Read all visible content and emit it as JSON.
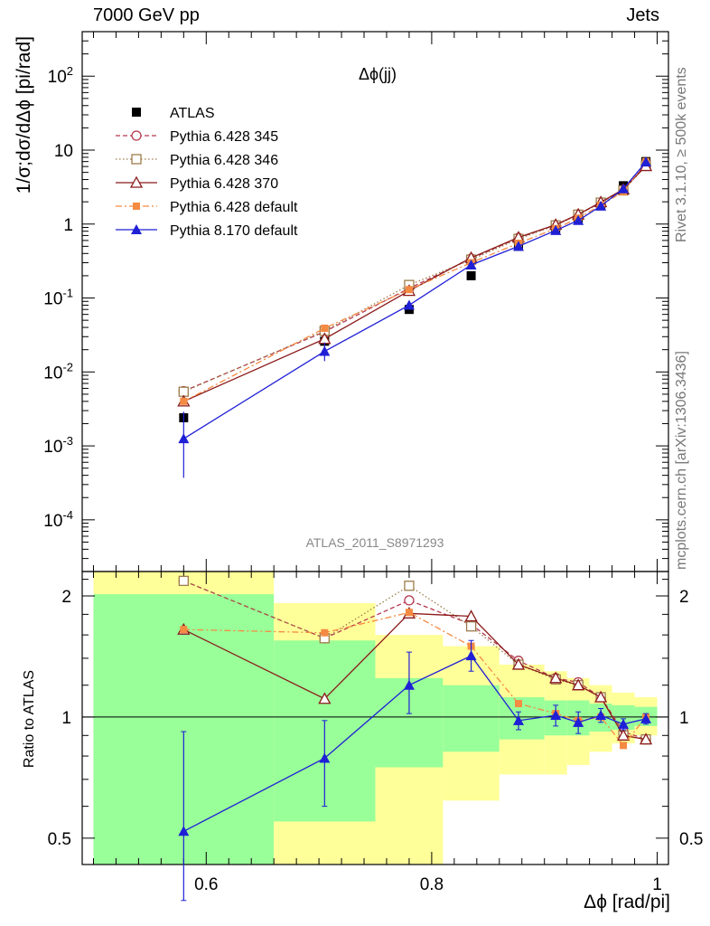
{
  "header": {
    "left": "7000 GeV pp",
    "right": "Jets",
    "side_top": "Rivet 3.1.10, ≥ 500k events",
    "side_bottom": "mcplots.cern.ch [arXiv:1306.3436]"
  },
  "chart_data": [
    {
      "type": "scatter",
      "panel": "main",
      "title": "Δϕ(jj)",
      "reference": "ATLAS_2011_S8971293",
      "ylabel": "1/σ;dσ/dΔϕ [pi/rad]",
      "xlabel": "Δϕ [rad/pi]",
      "yscale": "log",
      "xlim": [
        0.49,
        1.01
      ],
      "ylim": [
        2e-05,
        400
      ],
      "yticks": [
        0.0001,
        0.001,
        0.01,
        0.1,
        1,
        10,
        100
      ],
      "ytick_labels": [
        "10^-4",
        "10^-3",
        "10^-2",
        "10^-1",
        "1",
        "10",
        "10^2"
      ],
      "legend_position": "top-left",
      "x": [
        0.58,
        0.705,
        0.78,
        0.835,
        0.877,
        0.91,
        0.93,
        0.95,
        0.97,
        0.99
      ],
      "series": [
        {
          "name": "ATLAS",
          "color": "#000000",
          "marker": "square",
          "line": "none",
          "values": [
            0.0024,
            0.026,
            0.07,
            0.2,
            0.5,
            0.85,
            1.2,
            1.8,
            3.3,
            7.0
          ]
        },
        {
          "name": "Pythia 6.428 345",
          "color": "#b5394f",
          "marker": "open-circle",
          "line": "dashed",
          "values": [
            0.0055,
            0.035,
            0.135,
            0.34,
            0.65,
            0.97,
            1.35,
            1.95,
            2.9,
            6.3
          ]
        },
        {
          "name": "Pythia 6.428 346",
          "color": "#9d7c4a",
          "marker": "open-square",
          "line": "dotted",
          "values": [
            0.0054,
            0.036,
            0.15,
            0.33,
            0.63,
            0.96,
            1.34,
            1.95,
            2.85,
            6.2
          ]
        },
        {
          "name": "Pythia 6.428 370",
          "color": "#8b1a1a",
          "marker": "open-triangle",
          "line": "solid",
          "values": [
            0.004,
            0.028,
            0.125,
            0.35,
            0.66,
            0.98,
            1.35,
            1.98,
            2.95,
            6.1
          ]
        },
        {
          "name": "Pythia 6.428 default",
          "color": "#f58a42",
          "marker": "small-square",
          "line": "dashdot",
          "values": [
            0.004,
            0.039,
            0.13,
            0.3,
            0.55,
            0.87,
            1.2,
            1.8,
            2.75,
            7.0
          ]
        },
        {
          "name": "Pythia 8.170 default",
          "color": "#1f1fd6",
          "marker": "triangle",
          "line": "solid",
          "values": [
            0.00125,
            0.019,
            0.08,
            0.28,
            0.5,
            0.82,
            1.12,
            1.75,
            3.0,
            6.9
          ],
          "err_lo": [
            0.00037,
            0.014,
            0.07,
            0.26,
            0.47,
            0.78,
            1.06,
            1.67,
            2.85,
            6.6
          ],
          "err_hi": [
            0.0029,
            0.025,
            0.09,
            0.3,
            0.53,
            0.86,
            1.18,
            1.83,
            3.15,
            7.2
          ]
        }
      ]
    },
    {
      "type": "scatter",
      "panel": "ratio",
      "ylabel": "Ratio to ATLAS",
      "xlabel": "Δϕ [rad/pi]",
      "xlim": [
        0.49,
        1.01
      ],
      "ylim": [
        0.43,
        2.3
      ],
      "xticks": [
        0.6,
        0.8,
        1
      ],
      "xtick_labels": [
        "0.6",
        "0.8",
        "1"
      ],
      "yticks": [
        0.5,
        1,
        2
      ],
      "ytick_labels": [
        "0.5",
        "1",
        "2"
      ],
      "bands": [
        {
          "x0": 0.5,
          "x1": 0.66,
          "g_lo": 0.43,
          "g_hi": 2.02,
          "y_lo": 0.43,
          "y_hi": 2.3
        },
        {
          "x0": 0.66,
          "x1": 0.75,
          "g_lo": 0.55,
          "g_hi": 1.55,
          "y_lo": 0.43,
          "y_hi": 1.92
        },
        {
          "x0": 0.75,
          "x1": 0.81,
          "g_lo": 0.75,
          "g_hi": 1.25,
          "y_lo": 0.43,
          "y_hi": 1.6
        },
        {
          "x0": 0.81,
          "x1": 0.86,
          "g_lo": 0.82,
          "g_hi": 1.2,
          "y_lo": 0.62,
          "y_hi": 1.5
        },
        {
          "x0": 0.86,
          "x1": 0.9,
          "g_lo": 0.88,
          "g_hi": 1.12,
          "y_lo": 0.72,
          "y_hi": 1.35
        },
        {
          "x0": 0.9,
          "x1": 0.92,
          "g_lo": 0.9,
          "g_hi": 1.1,
          "y_lo": 0.72,
          "y_hi": 1.3
        },
        {
          "x0": 0.92,
          "x1": 0.94,
          "g_lo": 0.9,
          "g_hi": 1.1,
          "y_lo": 0.76,
          "y_hi": 1.25
        },
        {
          "x0": 0.94,
          "x1": 0.96,
          "g_lo": 0.92,
          "g_hi": 1.08,
          "y_lo": 0.82,
          "y_hi": 1.2
        },
        {
          "x0": 0.96,
          "x1": 0.98,
          "g_lo": 0.93,
          "g_hi": 1.07,
          "y_lo": 0.86,
          "y_hi": 1.15
        },
        {
          "x0": 0.98,
          "x1": 1.0,
          "g_lo": 0.95,
          "g_hi": 1.06,
          "y_lo": 0.9,
          "y_hi": 1.12
        }
      ],
      "x": [
        0.58,
        0.705,
        0.78,
        0.835,
        0.877,
        0.91,
        0.93,
        0.95,
        0.97,
        0.99
      ],
      "series": [
        {
          "name": "Pythia 6.428 345",
          "color": "#b5394f",
          "values": [
            2.18,
            1.57,
            1.95,
            1.7,
            1.38,
            1.25,
            1.22,
            1.12,
            0.92,
            0.88
          ]
        },
        {
          "name": "Pythia 6.428 346",
          "color": "#9d7c4a",
          "values": [
            2.18,
            1.57,
            2.12,
            1.68,
            1.35,
            1.24,
            1.2,
            1.12,
            0.9,
            0.88
          ]
        },
        {
          "name": "Pythia 6.428 370",
          "color": "#8b1a1a",
          "values": [
            1.65,
            1.11,
            1.81,
            1.78,
            1.35,
            1.25,
            1.2,
            1.12,
            0.9,
            0.88
          ]
        },
        {
          "name": "Pythia 6.428 default",
          "color": "#f58a42",
          "values": [
            1.65,
            1.62,
            1.82,
            1.5,
            1.08,
            1.02,
            0.98,
            1.0,
            0.85,
            1.0
          ]
        },
        {
          "name": "Pythia 8.170 default",
          "color": "#1f1fd6",
          "values": [
            0.52,
            0.79,
            1.2,
            1.42,
            0.98,
            1.01,
            0.97,
            1.01,
            0.96,
            0.99
          ],
          "err_lo": [
            0.35,
            0.6,
            1.02,
            1.3,
            0.93,
            0.95,
            0.91,
            0.97,
            0.93,
            0.96
          ],
          "err_hi": [
            0.92,
            0.98,
            1.45,
            1.55,
            1.03,
            1.07,
            1.03,
            1.05,
            0.99,
            1.02
          ]
        }
      ]
    }
  ]
}
